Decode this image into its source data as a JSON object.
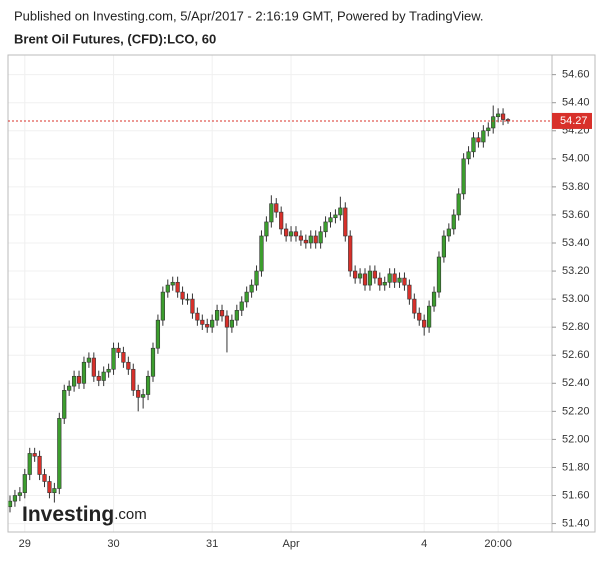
{
  "header": "Published on Investing.com, 5/Apr/2017 - 2:16:19 GMT, Powered by TradingView.",
  "chart_data": {
    "type": "candlestick",
    "title": "Brent Oil Futures, (CFD):LCO, 60",
    "logo": "Investing",
    "logo_suffix": ".com",
    "up_color": "#3c9e2e",
    "down_color": "#d8302a",
    "grid": true,
    "ylim": [
      51.34,
      54.74
    ],
    "yticks": [
      {
        "value": 51.4,
        "label": "51.40"
      },
      {
        "value": 51.6,
        "label": "51.60"
      },
      {
        "value": 51.8,
        "label": "51.80"
      },
      {
        "value": 52.0,
        "label": "52.00"
      },
      {
        "value": 52.2,
        "label": "52.20"
      },
      {
        "value": 52.4,
        "label": "52.40"
      },
      {
        "value": 52.6,
        "label": "52.60"
      },
      {
        "value": 52.8,
        "label": "52.80"
      },
      {
        "value": 53.0,
        "label": "53.00"
      },
      {
        "value": 53.2,
        "label": "53.20"
      },
      {
        "value": 53.4,
        "label": "53.40"
      },
      {
        "value": 53.6,
        "label": "53.60"
      },
      {
        "value": 53.8,
        "label": "53.80"
      },
      {
        "value": 54.0,
        "label": "54.00"
      },
      {
        "value": 54.2,
        "label": "54.20"
      },
      {
        "value": 54.4,
        "label": "54.40"
      },
      {
        "value": 54.6,
        "label": "54.60"
      }
    ],
    "last_price": 54.27,
    "last_price_color": "#d8302a",
    "categories": [
      null,
      null,
      null,
      "29",
      null,
      null,
      null,
      null,
      null,
      null,
      null,
      null,
      null,
      null,
      null,
      null,
      null,
      null,
      null,
      null,
      null,
      "30",
      null,
      null,
      null,
      null,
      null,
      null,
      null,
      null,
      null,
      null,
      null,
      null,
      null,
      null,
      null,
      null,
      null,
      null,
      null,
      "31",
      null,
      null,
      null,
      null,
      null,
      null,
      null,
      null,
      null,
      null,
      null,
      null,
      null,
      null,
      null,
      "Apr",
      null,
      null,
      null,
      null,
      null,
      null,
      null,
      null,
      null,
      null,
      null,
      null,
      null,
      null,
      null,
      null,
      null,
      null,
      null,
      null,
      null,
      null,
      null,
      null,
      null,
      null,
      "4",
      null,
      null,
      null,
      null,
      null,
      null,
      null,
      null,
      null,
      null,
      null,
      null,
      null,
      null,
      "20:00",
      null,
      null
    ],
    "open": [
      51.52,
      51.56,
      51.6,
      51.62,
      51.75,
      51.9,
      51.88,
      51.75,
      51.7,
      51.62,
      51.65,
      52.15,
      52.35,
      52.38,
      52.45,
      52.4,
      52.55,
      52.58,
      52.45,
      52.42,
      52.48,
      52.5,
      52.65,
      52.62,
      52.55,
      52.5,
      52.35,
      52.3,
      52.32,
      52.45,
      52.65,
      52.85,
      53.05,
      53.1,
      53.12,
      53.05,
      53.0,
      53.0,
      52.9,
      52.85,
      52.82,
      52.8,
      52.85,
      52.92,
      52.88,
      52.8,
      52.85,
      52.92,
      52.98,
      53.05,
      53.1,
      53.2,
      53.45,
      53.55,
      53.68,
      53.62,
      53.5,
      53.45,
      53.48,
      53.45,
      53.42,
      53.4,
      53.45,
      53.4,
      53.48,
      53.55,
      53.58,
      53.6,
      53.65,
      53.45,
      53.2,
      53.15,
      53.18,
      53.1,
      53.2,
      53.15,
      53.1,
      53.12,
      53.18,
      53.12,
      53.15,
      53.1,
      53.0,
      52.9,
      52.85,
      52.8,
      52.95,
      53.05,
      53.3,
      53.45,
      53.5,
      53.6,
      53.75,
      54.0,
      54.05,
      54.15,
      54.12,
      54.2,
      54.22,
      54.3,
      54.32,
      54.28
    ],
    "high": [
      51.6,
      51.64,
      51.66,
      51.79,
      51.94,
      51.94,
      51.92,
      51.79,
      51.74,
      51.69,
      52.19,
      52.39,
      52.42,
      52.49,
      52.49,
      52.59,
      52.62,
      52.62,
      52.49,
      52.52,
      52.54,
      52.69,
      52.69,
      52.66,
      52.59,
      52.54,
      52.39,
      52.36,
      52.49,
      52.69,
      52.89,
      53.09,
      53.14,
      53.16,
      53.16,
      53.09,
      53.04,
      53.04,
      52.94,
      52.89,
      52.86,
      52.89,
      52.96,
      52.96,
      52.92,
      52.89,
      52.96,
      53.02,
      53.09,
      53.14,
      53.24,
      53.49,
      53.59,
      53.74,
      53.72,
      53.66,
      53.54,
      53.52,
      53.52,
      53.49,
      53.46,
      53.49,
      53.49,
      53.52,
      53.59,
      53.62,
      53.64,
      53.73,
      53.69,
      53.49,
      53.24,
      53.22,
      53.22,
      53.24,
      53.24,
      53.19,
      53.16,
      53.22,
      53.22,
      53.19,
      53.19,
      53.14,
      53.04,
      52.94,
      52.89,
      52.99,
      53.09,
      53.34,
      53.49,
      53.54,
      53.64,
      53.79,
      54.04,
      54.09,
      54.19,
      54.19,
      54.24,
      54.26,
      54.38,
      54.36,
      54.36,
      54.29
    ],
    "low": [
      51.48,
      51.52,
      51.56,
      51.58,
      51.71,
      51.84,
      51.71,
      51.66,
      51.58,
      51.55,
      51.61,
      52.11,
      52.31,
      52.34,
      52.36,
      52.36,
      52.51,
      52.41,
      52.38,
      52.38,
      52.44,
      52.46,
      52.58,
      52.51,
      52.46,
      52.31,
      52.2,
      52.22,
      52.28,
      52.41,
      52.61,
      52.81,
      53.01,
      53.06,
      53.01,
      52.96,
      52.96,
      52.86,
      52.81,
      52.78,
      52.76,
      52.76,
      52.81,
      52.84,
      52.62,
      52.76,
      52.81,
      52.88,
      52.94,
      53.01,
      53.06,
      53.16,
      53.41,
      53.51,
      53.58,
      53.46,
      53.41,
      53.41,
      53.41,
      53.38,
      53.36,
      53.36,
      53.36,
      53.36,
      53.44,
      53.51,
      53.54,
      53.56,
      53.41,
      53.16,
      53.11,
      53.11,
      53.06,
      53.06,
      53.11,
      53.06,
      53.06,
      53.08,
      53.08,
      53.08,
      53.06,
      52.96,
      52.86,
      52.81,
      52.74,
      52.76,
      52.91,
      53.01,
      53.26,
      53.41,
      53.46,
      53.56,
      53.71,
      53.96,
      54.01,
      54.08,
      54.08,
      54.16,
      54.18,
      54.26,
      54.24,
      54.25
    ],
    "close": [
      51.56,
      51.6,
      51.62,
      51.75,
      51.9,
      51.88,
      51.75,
      51.7,
      51.62,
      51.65,
      52.15,
      52.35,
      52.38,
      52.45,
      52.4,
      52.55,
      52.58,
      52.45,
      52.42,
      52.48,
      52.5,
      52.65,
      52.62,
      52.55,
      52.5,
      52.35,
      52.3,
      52.32,
      52.45,
      52.65,
      52.85,
      53.05,
      53.1,
      53.12,
      53.05,
      53.0,
      53.0,
      52.9,
      52.85,
      52.82,
      52.8,
      52.85,
      52.92,
      52.88,
      52.8,
      52.85,
      52.92,
      52.98,
      53.05,
      53.1,
      53.2,
      53.45,
      53.55,
      53.68,
      53.62,
      53.5,
      53.45,
      53.48,
      53.45,
      53.42,
      53.4,
      53.45,
      53.4,
      53.48,
      53.55,
      53.58,
      53.6,
      53.65,
      53.45,
      53.2,
      53.15,
      53.18,
      53.1,
      53.2,
      53.15,
      53.1,
      53.12,
      53.18,
      53.12,
      53.15,
      53.1,
      53.0,
      52.9,
      52.85,
      52.8,
      52.95,
      53.05,
      53.3,
      53.45,
      53.5,
      53.6,
      53.75,
      54.0,
      54.05,
      54.15,
      54.12,
      54.2,
      54.22,
      54.3,
      54.32,
      54.28,
      54.27
    ]
  }
}
